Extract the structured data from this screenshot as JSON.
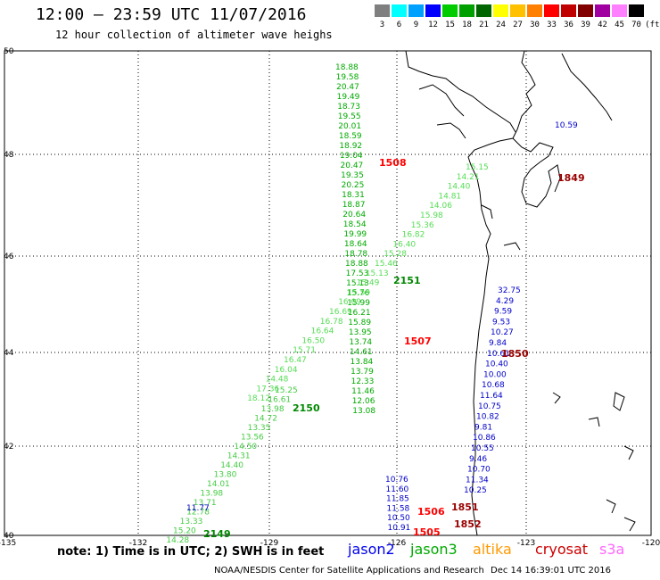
{
  "header": {
    "title": "12:00 – 23:59 UTC 11/07/2016",
    "subtitle": "12 hour collection of altimeter wave heighs"
  },
  "scale": {
    "labels": [
      "3",
      "6",
      "9",
      "12",
      "15",
      "18",
      "21",
      "24",
      "27",
      "30",
      "33",
      "36",
      "39",
      "42",
      "45",
      "70"
    ],
    "unit": "(ft)",
    "colors": [
      "#7f7f7f",
      "#00ffff",
      "#00a0ff",
      "#0000ff",
      "#00cc00",
      "#00a000",
      "#006400",
      "#ffff00",
      "#ffc000",
      "#ff8000",
      "#ff0000",
      "#c00000",
      "#800000",
      "#a000a0",
      "#ff80ff",
      "#000000"
    ]
  },
  "axes": {
    "lon_ticks": [
      "-135",
      "-132",
      "-129",
      "-126",
      "-123",
      "-120"
    ],
    "lat_ticks": [
      "50",
      "48",
      "46",
      "44",
      "42",
      "40"
    ]
  },
  "tracks": [
    {
      "id": "1508",
      "color": "#00aa00",
      "label_color": "#ff0000",
      "values": [
        "18.88",
        "19.58",
        "20.47",
        "19.49",
        "18.73",
        "19.55",
        "20.01",
        "18.59",
        "18.92",
        "19.04",
        "20.47",
        "19.35",
        "20.25",
        "18.31",
        "18.87",
        "20.64",
        "18.54",
        "19.99",
        "18.64",
        "18.78",
        "18.88",
        "17.53",
        "15.13",
        "15.76",
        "15.99",
        "16.21",
        "15.89",
        "13.95",
        "13.74",
        "14.61",
        "13.84",
        "13.79",
        "12.33",
        "11.46",
        "12.06",
        "13.08"
      ]
    },
    {
      "id": "2151",
      "color": "#55dd55",
      "label_color": "#008800",
      "values": [
        "15.15",
        "14.21",
        "14.40",
        "14.81",
        "14.06",
        "15.98",
        "15.36",
        "16.82",
        "16.40",
        "15.28",
        "15.46",
        "15.13",
        "15.49",
        "15.59",
        "16.09",
        "16.69",
        "16.78",
        "16.64",
        "16.50",
        "15.71",
        "16.47",
        "16.04",
        "14.48",
        "17.36",
        "18.12"
      ]
    },
    {
      "id": "2150",
      "color": "#44cc44",
      "label_color": "#008800",
      "values": [
        "15.25",
        "16.61",
        "13.98",
        "14.72",
        "13.35",
        "13.56",
        "14.50",
        "14.31",
        "14.40",
        "13.80",
        "14.01",
        "13.98",
        "13.71",
        "12.78",
        "13.33",
        "15.20",
        "14.28"
      ]
    },
    {
      "id": "1507",
      "color": "#00aa00",
      "label_color": "#ff0000",
      "values": []
    },
    {
      "id": "2149",
      "color": "#44cc44",
      "label_color": "#008800",
      "values": []
    },
    {
      "id": "1506",
      "color": "#0000cc",
      "label_color": "#ff0000",
      "values": [
        "10.76",
        "11.60",
        "11.85",
        "11.58",
        "10.50",
        "10.91"
      ]
    },
    {
      "id": "1505",
      "color": "#0000cc",
      "label_color": "#ff0000",
      "values": []
    },
    {
      "id": "1850",
      "color": "#0000cc",
      "label_color": "#990000",
      "values": [
        "32.75",
        "4.29",
        "9.59",
        "9.53",
        "10.27",
        "9.84",
        "10.61",
        "10.40",
        "10.00",
        "10.68",
        "11.64",
        "10.75",
        "10.82",
        "9.81",
        "10.86",
        "10.55",
        "9.46",
        "10.70",
        "11.34",
        "10.25"
      ]
    },
    {
      "id": "1849",
      "color": "#0000cc",
      "label_color": "#990000",
      "values": [
        "10.59"
      ]
    },
    {
      "id": "1851",
      "color": "#0000cc",
      "label_color": "#990000",
      "values": []
    },
    {
      "id": "1852",
      "color": "#0000cc",
      "label_color": "#990000",
      "values": []
    },
    {
      "id": "misc",
      "color": "#0000cc",
      "label_color": "#0000cc",
      "values": [
        "11.77"
      ]
    }
  ],
  "legend": {
    "note": "note: 1) Time is in UTC; 2) SWH is in feet",
    "items": [
      {
        "label": "jason2",
        "color": "#0000ee"
      },
      {
        "label": "jason3",
        "color": "#00aa00"
      },
      {
        "label": "altika",
        "color": "#ff9900"
      },
      {
        "label": "cryosat",
        "color": "#cc0000"
      },
      {
        "label": "s3a",
        "color": "#ff66ff"
      }
    ]
  },
  "footer": {
    "credit": "NOAA/NESDIS Center for Satellite Applications and Research",
    "timestamp": "Dec 14 16:39:01 UTC 2016"
  }
}
